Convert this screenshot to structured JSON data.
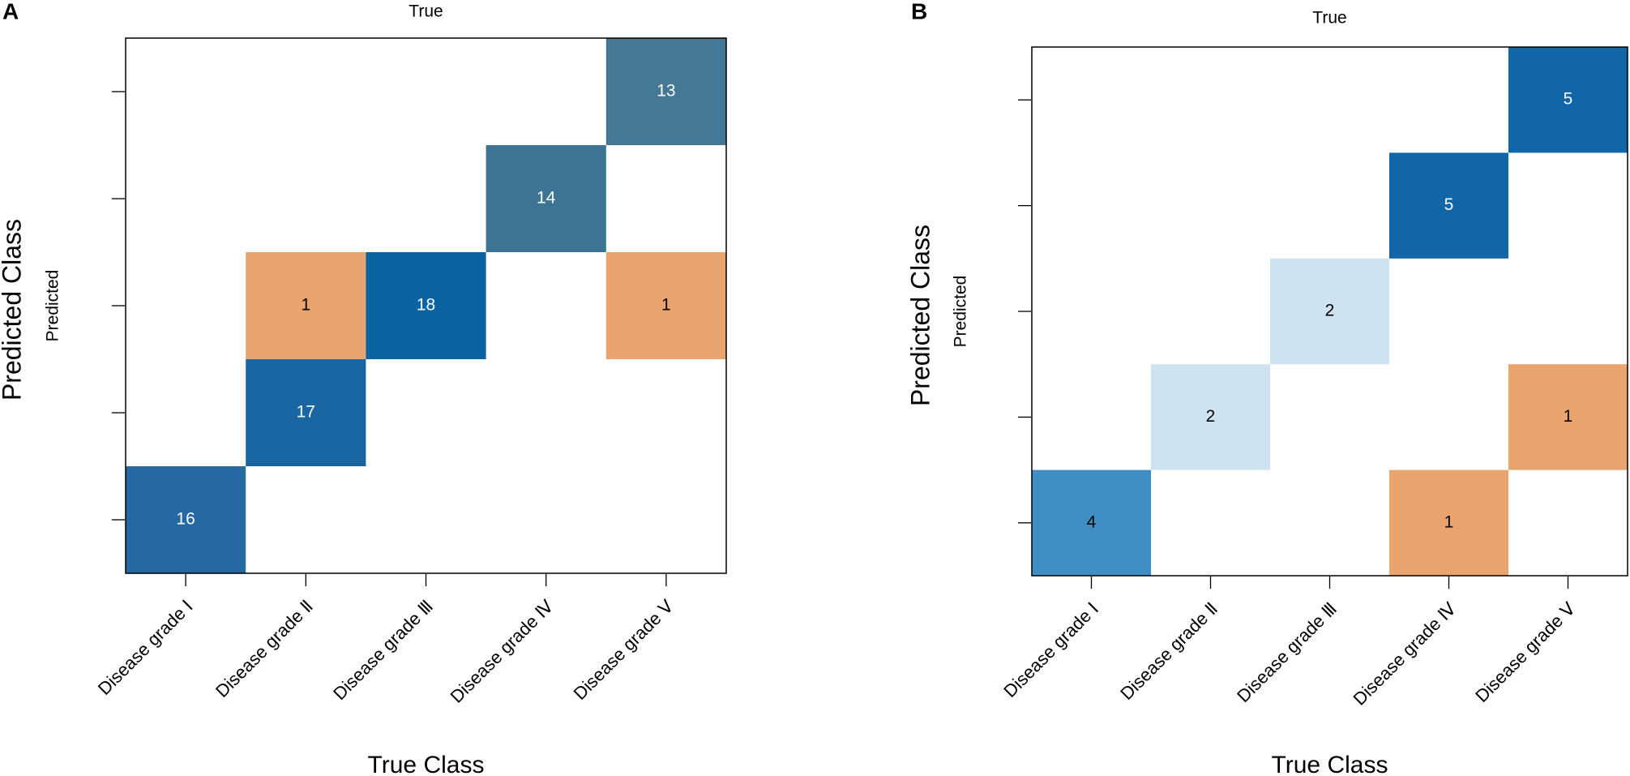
{
  "chart_data": [
    {
      "type": "heatmap",
      "panel": "A",
      "title": "True",
      "xlabel": "True Class",
      "ylabel": "Predicted Class",
      "ysublabel": "Predicted",
      "categories": [
        "Disease grade Ⅰ",
        "Disease grade Ⅱ",
        "Disease grade Ⅲ",
        "Disease grade Ⅳ",
        "Disease grade Ⅴ"
      ],
      "cells": [
        {
          "x": 0,
          "y": 0,
          "value": 16,
          "color": "#2569a3",
          "label_color": "#ffffff"
        },
        {
          "x": 1,
          "y": 1,
          "value": 17,
          "color": "#1a66a3",
          "label_color": "#ffffff"
        },
        {
          "x": 1,
          "y": 2,
          "value": 1,
          "color": "#eaa56f",
          "label_color": "#000000"
        },
        {
          "x": 2,
          "y": 2,
          "value": 18,
          "color": "#0b64a1",
          "label_color": "#ffffff"
        },
        {
          "x": 3,
          "y": 3,
          "value": 14,
          "color": "#3d7494",
          "label_color": "#ffffff"
        },
        {
          "x": 4,
          "y": 4,
          "value": 13,
          "color": "#457895",
          "label_color": "#ffffff"
        },
        {
          "x": 4,
          "y": 2,
          "value": 1,
          "color": "#eaa56f",
          "label_color": "#000000"
        }
      ]
    },
    {
      "type": "heatmap",
      "panel": "B",
      "title": "True",
      "xlabel": "True Class",
      "ylabel": "Predicted Class",
      "ysublabel": "Predicted",
      "categories": [
        "Disease grade Ⅰ",
        "Disease grade Ⅱ",
        "Disease grade Ⅲ",
        "Disease grade Ⅳ",
        "Disease grade Ⅴ"
      ],
      "cells": [
        {
          "x": 0,
          "y": 0,
          "value": 4,
          "color": "#3f8fc5",
          "label_color": "#000000"
        },
        {
          "x": 1,
          "y": 1,
          "value": 2,
          "color": "#cde3f2",
          "label_color": "#000000"
        },
        {
          "x": 2,
          "y": 2,
          "value": 2,
          "color": "#cde3f2",
          "label_color": "#000000"
        },
        {
          "x": 3,
          "y": 3,
          "value": 5,
          "color": "#1166a8",
          "label_color": "#ffffff"
        },
        {
          "x": 4,
          "y": 4,
          "value": 5,
          "color": "#1166a8",
          "label_color": "#ffffff"
        },
        {
          "x": 4,
          "y": 1,
          "value": 1,
          "color": "#eaa56f",
          "label_color": "#000000"
        },
        {
          "x": 3,
          "y": 0,
          "value": 1,
          "color": "#eaa56f",
          "label_color": "#000000"
        }
      ]
    }
  ]
}
